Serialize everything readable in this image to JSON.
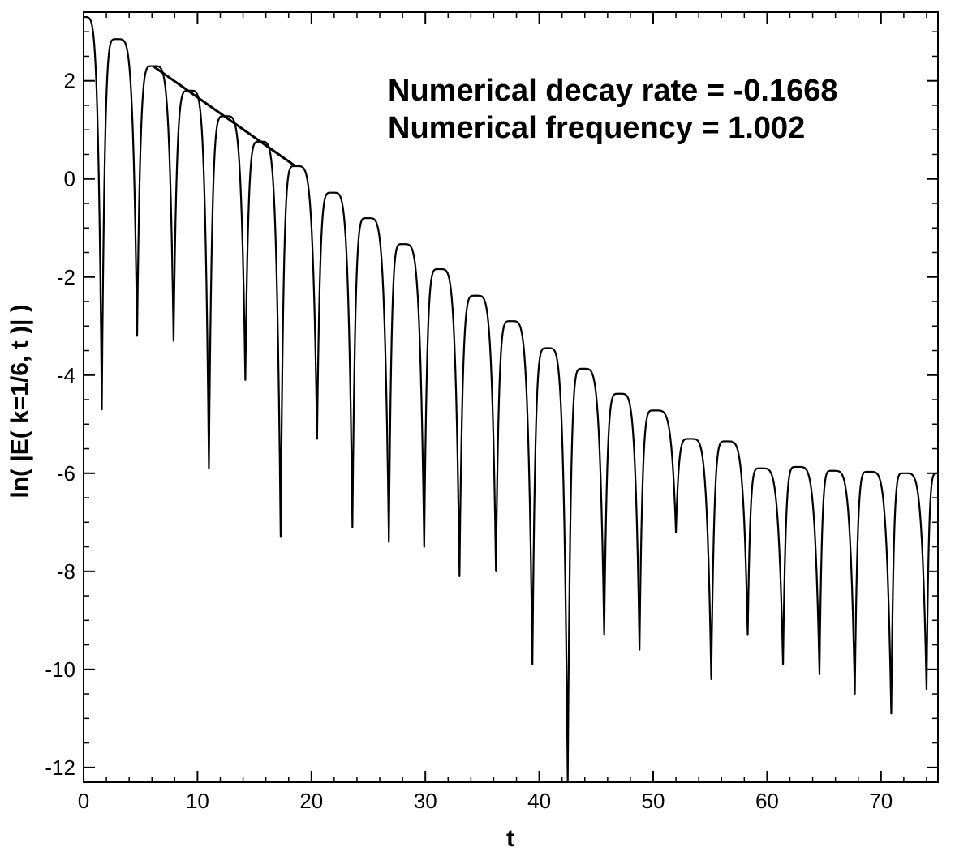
{
  "chart_data": {
    "type": "line",
    "title": "",
    "xlabel": "t",
    "ylabel": "ln( |E( k=1/6, t )| )",
    "xlim": [
      0,
      75
    ],
    "ylim": [
      -12.3,
      3.4
    ],
    "x_ticks": [
      0,
      10,
      20,
      30,
      40,
      50,
      60,
      70
    ],
    "y_ticks": [
      2,
      0,
      -2,
      -4,
      -6,
      -8,
      -10,
      -12
    ],
    "x_tick_labels": [
      "0",
      "10",
      "20",
      "30",
      "40",
      "50",
      "60",
      "70"
    ],
    "y_tick_labels": [
      "2",
      "0",
      "-2",
      "-4",
      "-6",
      "-8",
      "-10",
      "-12"
    ],
    "grid": false,
    "legend": "none",
    "line_color": "#000000",
    "annotations": [
      "Numerical decay rate = -0.1668",
      "Numerical frequency = 1.002"
    ],
    "series": [
      {
        "peaks": [
          [
            0.0,
            3.3
          ],
          [
            2.9,
            2.85
          ],
          [
            6.1,
            2.3
          ],
          [
            9.3,
            1.8
          ],
          [
            12.4,
            1.28
          ],
          [
            15.5,
            0.76
          ],
          [
            18.6,
            0.26
          ],
          [
            21.8,
            -0.28
          ],
          [
            24.9,
            -0.8
          ],
          [
            28.0,
            -1.33
          ],
          [
            31.2,
            -1.84
          ],
          [
            34.4,
            -2.38
          ],
          [
            37.5,
            -2.9
          ],
          [
            40.7,
            -3.45
          ],
          [
            43.8,
            -3.87
          ],
          [
            47.0,
            -4.38
          ],
          [
            50.1,
            -4.72
          ],
          [
            53.2,
            -5.3
          ],
          [
            56.4,
            -5.35
          ],
          [
            59.4,
            -5.9
          ],
          [
            62.6,
            -5.87
          ],
          [
            65.7,
            -5.95
          ],
          [
            68.9,
            -5.97
          ],
          [
            72.0,
            -6.0
          ],
          [
            75.0,
            -6.0
          ]
        ],
        "troughs": [
          [
            1.6,
            -4.7
          ],
          [
            4.7,
            -3.2
          ],
          [
            7.9,
            -3.3
          ],
          [
            11.0,
            -5.9
          ],
          [
            14.2,
            -4.1
          ],
          [
            17.3,
            -7.3
          ],
          [
            20.5,
            -5.3
          ],
          [
            23.6,
            -7.1
          ],
          [
            26.8,
            -7.4
          ],
          [
            29.9,
            -7.5
          ],
          [
            33.0,
            -8.1
          ],
          [
            36.2,
            -8.0
          ],
          [
            39.4,
            -9.9
          ],
          [
            42.5,
            -12.3
          ],
          [
            45.7,
            -9.3
          ],
          [
            48.8,
            -9.6
          ],
          [
            52.0,
            -7.2
          ],
          [
            55.1,
            -10.2
          ],
          [
            58.3,
            -9.3
          ],
          [
            61.4,
            -9.9
          ],
          [
            64.6,
            -10.1
          ],
          [
            67.7,
            -10.5
          ],
          [
            70.9,
            -10.9
          ],
          [
            74.0,
            -10.4
          ]
        ]
      },
      {
        "x": [
          6.1,
          18.6
        ],
        "y": [
          2.3,
          0.26
        ]
      }
    ]
  }
}
